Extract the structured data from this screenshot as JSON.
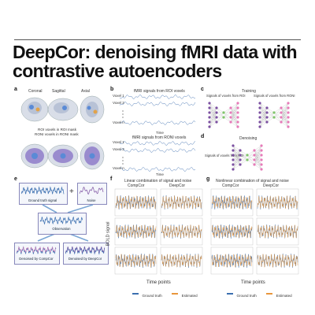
{
  "title": "DeepCor: denoising fMRI data with contrastive autoencoders",
  "panel_labels": [
    "a",
    "b",
    "c",
    "d",
    "e",
    "f",
    "g"
  ],
  "panel_a": {
    "header_labels": [
      "Coronal",
      "Sagittal",
      "Axial"
    ],
    "caption_line1": "ROI voxels in ROI mask",
    "caption_line2": "RONI voxels in RONI mask"
  },
  "panel_b": {
    "top_title": "fMRI signals from ROI voxels",
    "bottom_title": "fMRI signals from RONI voxels",
    "voxel_labels": [
      "Voxel 1",
      "Voxel 2",
      "Voxel n"
    ],
    "time_label": "Time"
  },
  "panel_c": {
    "title": "Training",
    "left_label": "Signals of voxels from ROI",
    "right_label": "Signals of voxels from RONI"
  },
  "panel_d": {
    "title": "Denoising",
    "label": "Signals of voxels from ROI"
  },
  "panel_e": {
    "box1": "Ground truth signal",
    "plus": "+",
    "box2": "Noise",
    "box3": "Observation",
    "box4": "Denoised by CompCor",
    "box5": "Denoised by DeepCor"
  },
  "panel_f": {
    "title": "Linear combination of signal and noise",
    "col_labels": [
      "CompCor",
      "DeepCor"
    ],
    "ylabel": "BOLD signal",
    "xlabel": "Time points",
    "legend": [
      "Ground truth",
      "Estimated"
    ]
  },
  "panel_g": {
    "title": "Nonlinear combination of signal and noise",
    "col_labels": [
      "CompCor",
      "DeepCor"
    ],
    "xlabel": "Time points",
    "legend": [
      "Ground truth",
      "Estimated"
    ]
  },
  "colors": {
    "ground_truth": "#3b6fb0",
    "estimated": "#e8963c",
    "purple": "#7b4fa0",
    "pink": "#e67ab8",
    "green": "#7fc46a",
    "box_blue": "#dbe6f5"
  }
}
